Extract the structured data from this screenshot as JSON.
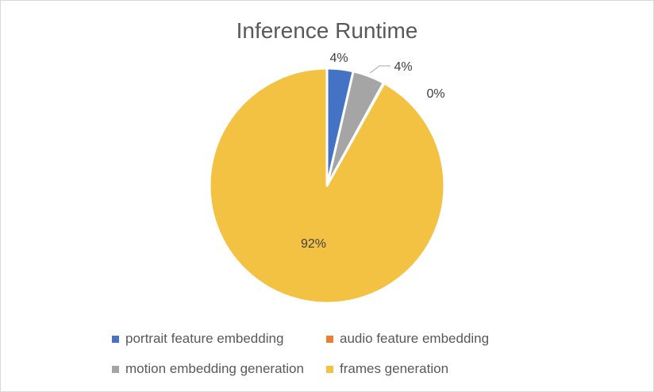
{
  "chart_data": {
    "type": "pie",
    "title": "Inference Runtime",
    "categories": [
      "portrait feature embedding",
      "audio feature embedding",
      "motion embedding generation",
      "frames generation"
    ],
    "values": [
      3.6,
      0.1,
      4.4,
      91.9
    ],
    "data_labels": [
      "4%",
      "0%",
      "4%",
      "92%"
    ],
    "colors": [
      "#4472C4",
      "#ED7D31",
      "#A5A5A5",
      "#F4C242"
    ],
    "legend_position": "bottom"
  }
}
